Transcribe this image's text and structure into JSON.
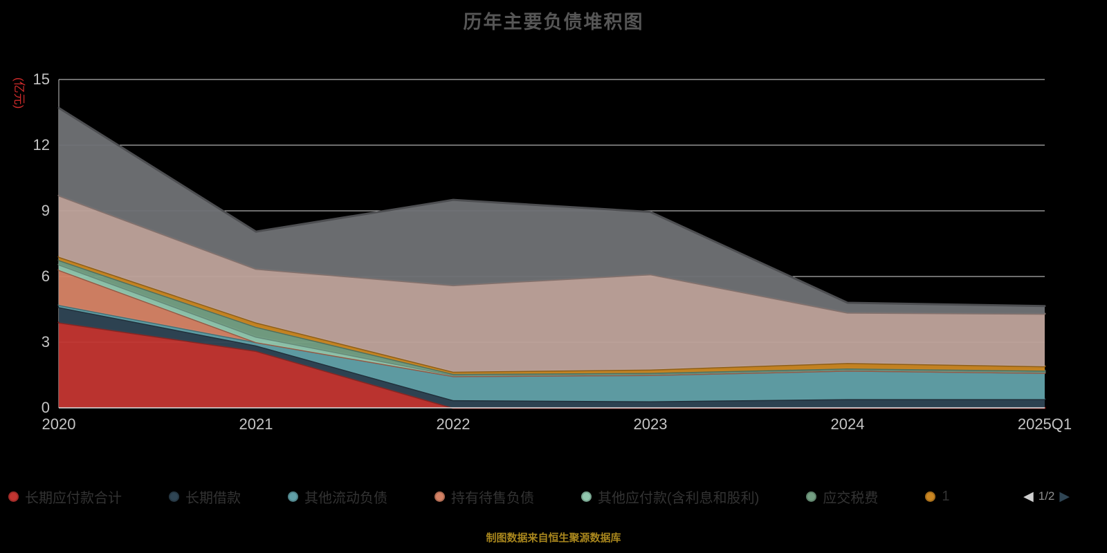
{
  "title": "历年主要负债堆积图",
  "source_note": "制图数据来自恒生聚源数据库",
  "chart_data": {
    "type": "area",
    "stacked": true,
    "title": "历年主要负债堆积图",
    "xlabel": "",
    "ylabel": "(亿元)",
    "ylabel_color": "#d02b2b",
    "ylim": [
      0,
      15
    ],
    "y_ticks": [
      "0",
      "3",
      "6",
      "9",
      "12",
      "15"
    ],
    "grid": true,
    "legend_position": "bottom",
    "categories": [
      "2020",
      "2021",
      "2022",
      "2023",
      "2024",
      "2025Q1"
    ],
    "series": [
      {
        "name": "长期应付款合计",
        "color": "#c23531",
        "values": [
          3.9,
          2.6,
          0,
          0,
          0,
          0
        ]
      },
      {
        "name": "长期借款",
        "color": "#2f4554",
        "values": [
          0.7,
          0.25,
          0.35,
          0.3,
          0.4,
          0.4
        ]
      },
      {
        "name": "其他流动负债",
        "color": "#61a0a8",
        "values": [
          0.1,
          0.15,
          1.1,
          1.2,
          1.3,
          1.2
        ]
      },
      {
        "name": "持有待售负债",
        "color": "#d48265",
        "values": [
          1.6,
          0,
          0,
          0,
          0,
          0
        ]
      },
      {
        "name": "其他应付款(含利息和股利)",
        "color": "#91c7ae",
        "values": [
          0.25,
          0.25,
          0.05,
          0.05,
          0.05,
          0.05
        ]
      },
      {
        "name": "应交税费",
        "color": "#749f83",
        "values": [
          0.2,
          0.45,
          0.05,
          0.05,
          0.05,
          0.05
        ]
      },
      {
        "name": "1",
        "color": "#ca8622",
        "values": [
          0.15,
          0.2,
          0.1,
          0.15,
          0.25,
          0.2
        ]
      },
      {
        "name": "",
        "color": "#bda29a",
        "values": [
          2.8,
          2.45,
          3.95,
          4.35,
          2.3,
          2.4
        ]
      },
      {
        "name": "",
        "color": "#6e7074",
        "values": [
          4.0,
          1.7,
          3.9,
          2.85,
          0.45,
          0.35
        ]
      }
    ]
  },
  "legend": {
    "items": [
      {
        "label": "长期应付款合计",
        "color": "#c23531"
      },
      {
        "label": "长期借款",
        "color": "#2f4554"
      },
      {
        "label": "其他流动负债",
        "color": "#61a0a8"
      },
      {
        "label": "持有待售负债",
        "color": "#d48265"
      },
      {
        "label": "其他应付款(含利息和股利)",
        "color": "#91c7ae"
      },
      {
        "label": "应交税费",
        "color": "#749f83"
      },
      {
        "label": "1",
        "color": "#ca8622"
      }
    ],
    "pager": {
      "prev_icon": "◀",
      "text": "1/2",
      "next_icon": "▶",
      "prev_color": "#cfcfcf",
      "next_color": "#2f4554"
    }
  }
}
